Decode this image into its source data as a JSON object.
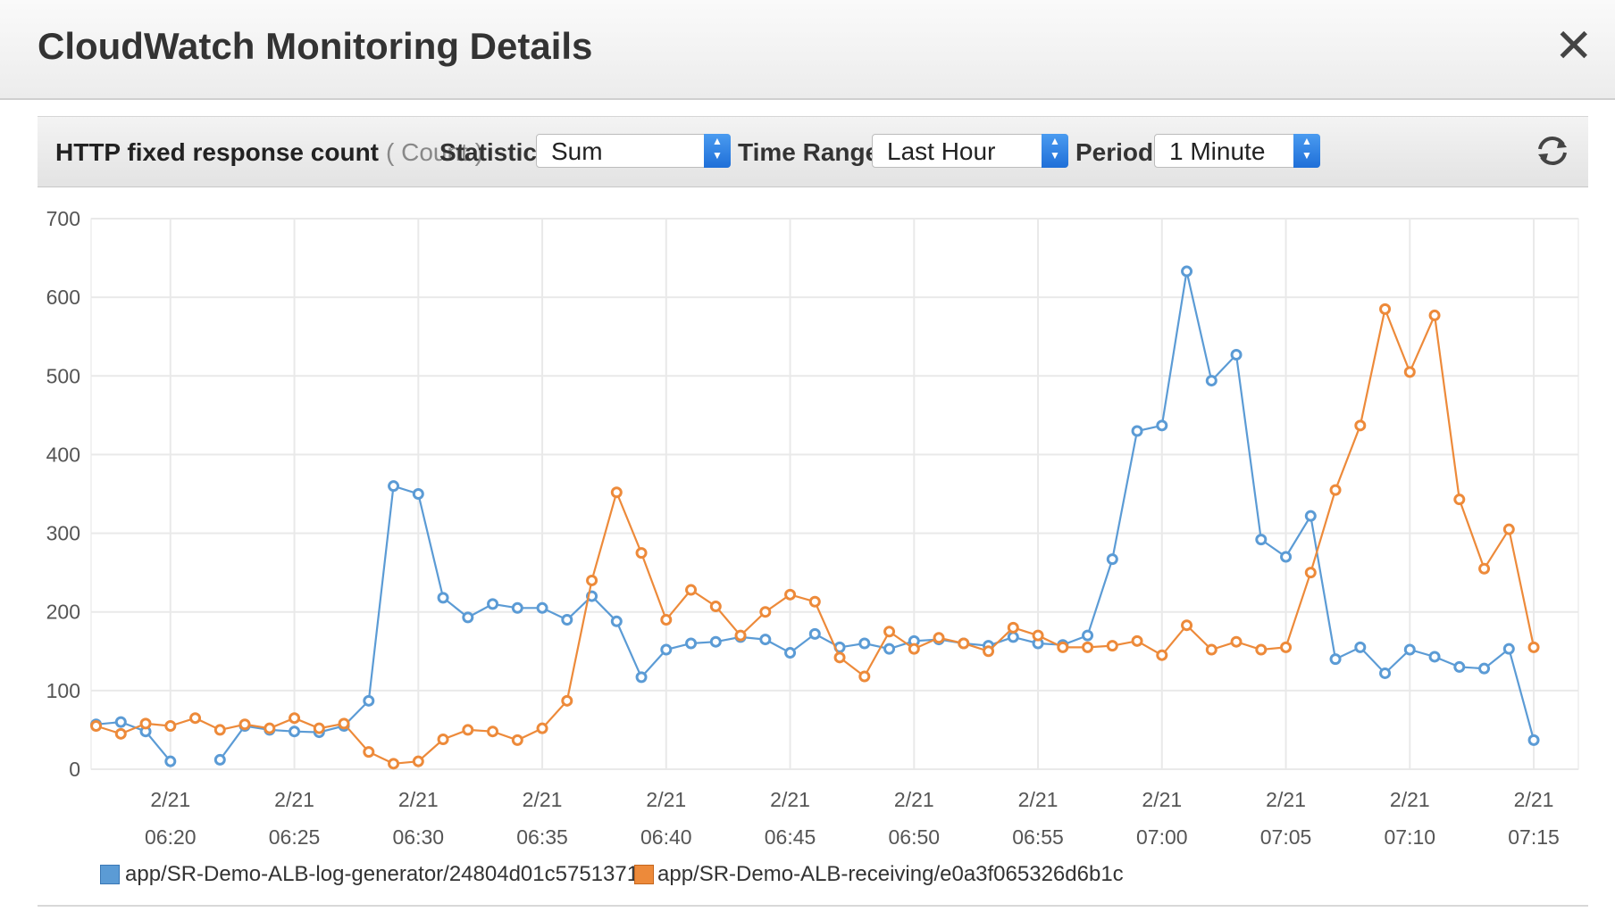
{
  "dialog": {
    "title": "CloudWatch Monitoring Details",
    "close_icon": "close-icon"
  },
  "toolbar": {
    "metric_name": "HTTP fixed response count",
    "metric_unit": "( Count )",
    "statistic_label": "Statistic:",
    "statistic_value": "Sum",
    "time_range_label": "Time Range:",
    "time_range_value": "Last Hour",
    "period_label": "Period:",
    "period_value": "1 Minute",
    "refresh_icon": "refresh-icon",
    "select_accent": "#2b7fe6"
  },
  "legend": {
    "items": [
      {
        "label": "app/SR-Demo-ALB-log-generator/24804d01c5751371",
        "color": "#5b9bd5"
      },
      {
        "label": "app/SR-Demo-ALB-receiving/e0a3f065326d6b1c",
        "color": "#ed8a3a"
      }
    ]
  },
  "chart_data": {
    "type": "line",
    "ylim": [
      0,
      700
    ],
    "yticks": [
      "0",
      "100",
      "200",
      "300",
      "400",
      "500",
      "600",
      "700"
    ],
    "xticks": [
      {
        "minute": 3,
        "date": "2/21",
        "time": "06:20"
      },
      {
        "minute": 8,
        "date": "2/21",
        "time": "06:25"
      },
      {
        "minute": 13,
        "date": "2/21",
        "time": "06:30"
      },
      {
        "minute": 18,
        "date": "2/21",
        "time": "06:35"
      },
      {
        "minute": 23,
        "date": "2/21",
        "time": "06:40"
      },
      {
        "minute": 28,
        "date": "2/21",
        "time": "06:45"
      },
      {
        "minute": 33,
        "date": "2/21",
        "time": "06:50"
      },
      {
        "minute": 38,
        "date": "2/21",
        "time": "06:55"
      },
      {
        "minute": 43,
        "date": "2/21",
        "time": "07:00"
      },
      {
        "minute": 48,
        "date": "2/21",
        "time": "07:05"
      },
      {
        "minute": 53,
        "date": "2/21",
        "time": "07:10"
      },
      {
        "minute": 58,
        "date": "2/21",
        "time": "07:15"
      }
    ],
    "xlim": [
      -0.2,
      59.8
    ],
    "grid": true,
    "legend_position": "bottom-left",
    "series": [
      {
        "name": "app/SR-Demo-ALB-log-generator/24804d01c5751371",
        "color": "#5b9bd5",
        "values": [
          57,
          60,
          48,
          10,
          null,
          12,
          55,
          50,
          48,
          47,
          55,
          87,
          360,
          350,
          218,
          193,
          210,
          205,
          205,
          190,
          220,
          188,
          117,
          152,
          160,
          162,
          168,
          165,
          148,
          172,
          155,
          160,
          153,
          163,
          165,
          160,
          157,
          168,
          160,
          158,
          170,
          267,
          430,
          437,
          633,
          494,
          527,
          292,
          270,
          322,
          140,
          155,
          122,
          152,
          143,
          130,
          128,
          153,
          37
        ]
      },
      {
        "name": "app/SR-Demo-ALB-receiving/e0a3f065326d6b1c",
        "color": "#ed8a3a",
        "values": [
          55,
          45,
          58,
          55,
          65,
          50,
          57,
          52,
          65,
          52,
          58,
          22,
          7,
          10,
          38,
          50,
          48,
          37,
          52,
          87,
          240,
          352,
          275,
          190,
          228,
          207,
          170,
          200,
          222,
          213,
          142,
          118,
          175,
          153,
          167,
          160,
          150,
          180,
          170,
          155,
          155,
          157,
          163,
          145,
          183,
          152,
          162,
          152,
          155,
          250,
          355,
          437,
          585,
          505,
          577,
          343,
          255,
          305,
          155
        ]
      }
    ]
  }
}
